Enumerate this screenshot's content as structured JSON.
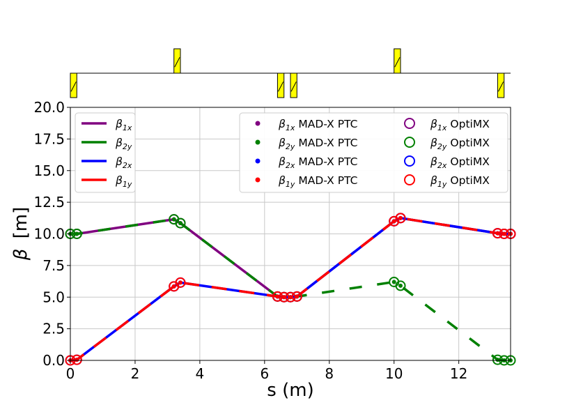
{
  "chart_data": {
    "type": "line",
    "xlabel": "s (m)",
    "ylabel_symbol": "β",
    "ylabel_unit": "[m]",
    "xlim": [
      0,
      13.6
    ],
    "ylim": [
      0,
      20
    ],
    "x_ticks": [
      0,
      2,
      4,
      6,
      8,
      10,
      12
    ],
    "x_tick_labels": [
      "0",
      "2",
      "4",
      "6",
      "8",
      "10",
      "12"
    ],
    "y_ticks": [
      0,
      2.5,
      5,
      7.5,
      10,
      12.5,
      15,
      17.5,
      20
    ],
    "y_tick_labels": [
      "0.0",
      "2.5",
      "5.0",
      "7.5",
      "10.0",
      "12.5",
      "15.0",
      "17.5",
      "20.0"
    ],
    "grid": true,
    "series": [
      {
        "name": "β1x",
        "sym": "β",
        "sub": "1x",
        "color": "#800080",
        "dash": "none",
        "x": [
          0,
          0.2,
          3.2,
          3.4,
          6.4,
          6.6,
          6.8,
          7.0,
          10.0,
          10.2,
          13.2,
          13.4,
          13.6
        ],
        "values": [
          10.0,
          10.0,
          11.15,
          10.85,
          5.05,
          5.0,
          5.0,
          5.05,
          11.0,
          11.25,
          10.05,
          10.0,
          10.0
        ]
      },
      {
        "name": "β2y",
        "sym": "β",
        "sub": "2y",
        "color": "#008000",
        "dash": "18 22",
        "x": [
          0,
          0.2,
          3.2,
          3.4,
          6.4,
          6.6,
          6.8,
          7.0,
          10.0,
          10.2,
          13.2,
          13.4,
          13.6
        ],
        "values": [
          10.0,
          10.0,
          11.15,
          10.85,
          5.05,
          5.0,
          5.0,
          5.05,
          6.2,
          5.9,
          0.05,
          0.0,
          0.0
        ]
      },
      {
        "name": "β2x",
        "sym": "β",
        "sub": "2x",
        "color": "#0000ff",
        "dash": "none",
        "x": [
          0,
          0.2,
          3.2,
          3.4,
          6.4,
          6.6,
          6.8,
          7.0,
          10.0,
          10.2,
          13.2,
          13.4,
          13.6
        ],
        "values": [
          0.0,
          0.05,
          5.85,
          6.15,
          5.05,
          5.0,
          5.0,
          5.05,
          11.0,
          11.25,
          10.05,
          10.0,
          10.0
        ]
      },
      {
        "name": "β1y",
        "sym": "β",
        "sub": "1y",
        "color": "#ff0000",
        "dash": "22 18",
        "x": [
          0,
          0.2,
          3.2,
          3.4,
          6.4,
          6.6,
          6.8,
          7.0,
          10.0,
          10.2,
          13.2,
          13.4,
          13.6
        ],
        "values": [
          0.0,
          0.05,
          5.85,
          6.15,
          5.05,
          5.0,
          5.0,
          5.05,
          11.0,
          11.25,
          10.05,
          10.0,
          10.0
        ]
      }
    ],
    "marker_indices": [
      0,
      1,
      2,
      3,
      4,
      5,
      6,
      7,
      8,
      9,
      10,
      11,
      12
    ],
    "legend_lines": [
      {
        "sym": "β",
        "sub": "1x",
        "color": "#800080"
      },
      {
        "sym": "β",
        "sub": "2y",
        "color": "#008000"
      },
      {
        "sym": "β",
        "sub": "2x",
        "color": "#0000ff"
      },
      {
        "sym": "β",
        "sub": "1y",
        "color": "#ff0000"
      }
    ],
    "legend_points": [
      {
        "sym": "β",
        "sub": "1x",
        "suffix": "MAD-X PTC",
        "color": "#800080"
      },
      {
        "sym": "β",
        "sub": "2y",
        "suffix": "MAD-X PTC",
        "color": "#008000"
      },
      {
        "sym": "β",
        "sub": "2x",
        "suffix": "MAD-X PTC",
        "color": "#0000ff"
      },
      {
        "sym": "β",
        "sub": "1y",
        "suffix": "MAD-X PTC",
        "color": "#ff0000"
      }
    ],
    "legend_circles": [
      {
        "sym": "β",
        "sub": "1x",
        "suffix": "OptiMX",
        "color": "#800080"
      },
      {
        "sym": "β",
        "sub": "2y",
        "suffix": "OptiMX",
        "color": "#008000"
      },
      {
        "sym": "β",
        "sub": "2x",
        "suffix": "OptiMX",
        "color": "#0000ff"
      },
      {
        "sym": "β",
        "sub": "1y",
        "suffix": "OptiMX",
        "color": "#ff0000"
      }
    ],
    "lattice": {
      "element_color": "#ffff00",
      "elements": [
        {
          "s": 0.1,
          "width": 0.2,
          "side": "below"
        },
        {
          "s": 3.3,
          "width": 0.2,
          "side": "above"
        },
        {
          "s": 6.5,
          "width": 0.2,
          "side": "below"
        },
        {
          "s": 6.9,
          "width": 0.2,
          "side": "below"
        },
        {
          "s": 10.1,
          "width": 0.2,
          "side": "above"
        },
        {
          "s": 13.3,
          "width": 0.2,
          "side": "below"
        }
      ]
    }
  }
}
